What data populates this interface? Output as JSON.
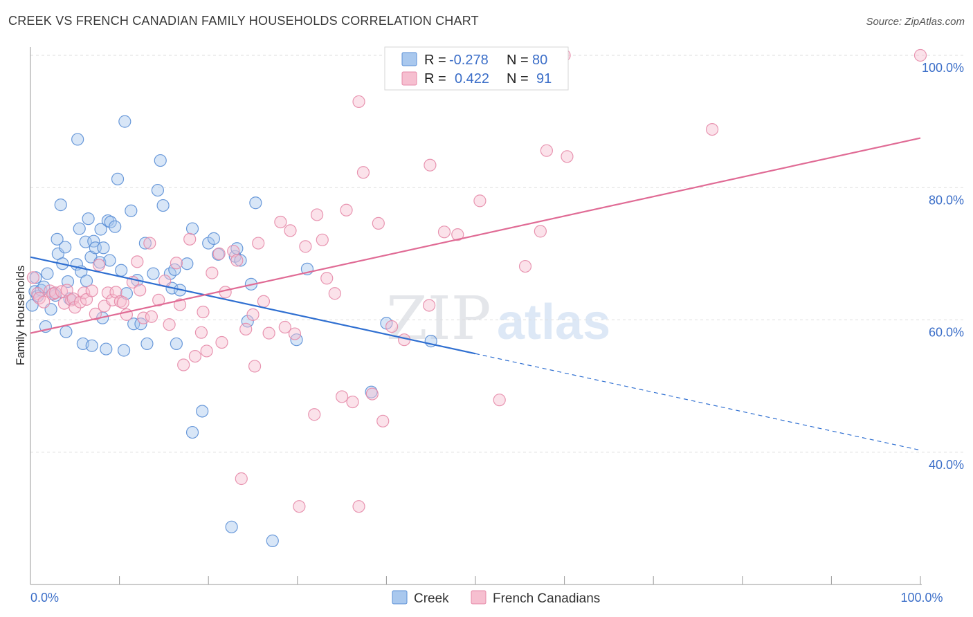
{
  "header": {
    "title": "CREEK VS FRENCH CANADIAN FAMILY HOUSEHOLDS CORRELATION CHART",
    "source": "Source: ZipAtlas.com"
  },
  "watermark": {
    "zip": "ZIP",
    "atlas": "atlas"
  },
  "legend": {
    "rows": [
      {
        "r_label": "R =",
        "r_value": "-0.278",
        "n_label": "N =",
        "n_value": "80"
      },
      {
        "r_label": "R =",
        "r_value": "0.422",
        "n_label": "N =",
        "n_value": "91"
      }
    ]
  },
  "bottom_legend": {
    "creek": "Creek",
    "french": "French Canadians"
  },
  "colors": {
    "creek_fill": "#a9c8ee",
    "creek_stroke": "#5b8fd6",
    "creek_line": "#2f6fd1",
    "french_fill": "#f6bfd0",
    "french_stroke": "#e68aa8",
    "french_line": "#e06b95",
    "tick_label": "#3b6ec8",
    "grid": "#dddddd"
  },
  "chart_data": {
    "type": "scatter",
    "xlabel": "",
    "ylabel": "Family Households",
    "xlim": [
      0,
      100
    ],
    "ylim": [
      20,
      100
    ],
    "x_tick_labels": [
      "0.0%",
      "100.0%"
    ],
    "y_ticks": [
      40,
      60,
      80,
      100
    ],
    "y_tick_labels": [
      "40.0%",
      "60.0%",
      "80.0%",
      "100.0%"
    ],
    "grid": true,
    "legend_position": "top-center",
    "series": [
      {
        "name": "Creek",
        "r": -0.278,
        "n": 80,
        "trend": {
          "x0": 0,
          "y0": 69.5,
          "x1": 50,
          "y1": 54.9,
          "dashed_to_x": 100,
          "dashed_to_y": 40.3
        },
        "points": [
          [
            0.2,
            62.2
          ],
          [
            0.5,
            64.3
          ],
          [
            0.6,
            66.4
          ],
          [
            0.8,
            63.6
          ],
          [
            1.2,
            64.5
          ],
          [
            1.5,
            65.0
          ],
          [
            1.7,
            59.0
          ],
          [
            1.9,
            67.0
          ],
          [
            2.3,
            61.6
          ],
          [
            2.6,
            64.0
          ],
          [
            2.8,
            63.7
          ],
          [
            3.0,
            72.2
          ],
          [
            3.1,
            70.0
          ],
          [
            3.4,
            77.4
          ],
          [
            3.6,
            68.5
          ],
          [
            3.9,
            71.0
          ],
          [
            4.0,
            58.2
          ],
          [
            4.2,
            65.8
          ],
          [
            4.4,
            63.2
          ],
          [
            5.2,
            68.4
          ],
          [
            5.3,
            87.3
          ],
          [
            5.5,
            73.8
          ],
          [
            5.7,
            67.3
          ],
          [
            5.9,
            56.4
          ],
          [
            6.2,
            71.8
          ],
          [
            6.3,
            65.9
          ],
          [
            6.5,
            75.3
          ],
          [
            6.8,
            69.5
          ],
          [
            6.9,
            56.1
          ],
          [
            7.1,
            71.9
          ],
          [
            7.3,
            70.9
          ],
          [
            7.8,
            68.7
          ],
          [
            7.9,
            73.7
          ],
          [
            8.1,
            60.3
          ],
          [
            8.2,
            70.9
          ],
          [
            8.5,
            55.6
          ],
          [
            8.7,
            75.0
          ],
          [
            8.9,
            69.0
          ],
          [
            9.0,
            74.8
          ],
          [
            9.5,
            74.1
          ],
          [
            9.8,
            81.3
          ],
          [
            10.2,
            67.5
          ],
          [
            10.5,
            55.4
          ],
          [
            10.6,
            90.0
          ],
          [
            10.8,
            64.0
          ],
          [
            11.3,
            76.5
          ],
          [
            11.6,
            59.4
          ],
          [
            12.4,
            59.4
          ],
          [
            12.9,
            71.6
          ],
          [
            13.1,
            56.4
          ],
          [
            13.8,
            67.0
          ],
          [
            14.3,
            79.6
          ],
          [
            14.6,
            84.1
          ],
          [
            14.9,
            77.3
          ],
          [
            15.7,
            67.0
          ],
          [
            15.9,
            64.8
          ],
          [
            16.2,
            67.6
          ],
          [
            16.4,
            56.4
          ],
          [
            17.6,
            68.5
          ],
          [
            18.2,
            73.8
          ],
          [
            18.2,
            43.0
          ],
          [
            19.3,
            46.2
          ],
          [
            20.0,
            71.6
          ],
          [
            20.6,
            72.3
          ],
          [
            21.1,
            69.9
          ],
          [
            22.6,
            28.7
          ],
          [
            23.0,
            69.6
          ],
          [
            23.2,
            70.8
          ],
          [
            23.6,
            69.0
          ],
          [
            24.4,
            59.8
          ],
          [
            24.8,
            65.4
          ],
          [
            25.3,
            77.7
          ],
          [
            27.2,
            26.6
          ],
          [
            29.9,
            57.0
          ],
          [
            31.1,
            67.7
          ],
          [
            38.3,
            49.1
          ],
          [
            40.0,
            59.5
          ],
          [
            45.0,
            56.8
          ],
          [
            16.8,
            64.5
          ],
          [
            12.0,
            66.0
          ]
        ]
      },
      {
        "name": "French Canadians",
        "r": 0.422,
        "n": 91,
        "trend": {
          "x0": 0,
          "y0": 58.0,
          "x1": 100,
          "y1": 87.5
        },
        "points": [
          [
            0.3,
            66.4
          ],
          [
            0.8,
            64.0
          ],
          [
            1.0,
            63.3
          ],
          [
            1.5,
            62.7
          ],
          [
            2.2,
            64.4
          ],
          [
            2.5,
            63.9
          ],
          [
            2.8,
            64.1
          ],
          [
            3.5,
            64.3
          ],
          [
            3.8,
            62.5
          ],
          [
            4.1,
            64.5
          ],
          [
            4.6,
            63.0
          ],
          [
            4.8,
            63.2
          ],
          [
            5.0,
            61.9
          ],
          [
            5.6,
            62.7
          ],
          [
            6.0,
            64.1
          ],
          [
            6.3,
            63.1
          ],
          [
            6.9,
            64.4
          ],
          [
            7.3,
            60.9
          ],
          [
            7.7,
            68.3
          ],
          [
            8.3,
            62.1
          ],
          [
            8.7,
            64.1
          ],
          [
            9.2,
            63.0
          ],
          [
            9.6,
            64.2
          ],
          [
            10.1,
            62.8
          ],
          [
            10.4,
            62.6
          ],
          [
            10.8,
            60.8
          ],
          [
            11.5,
            65.7
          ],
          [
            12.0,
            68.8
          ],
          [
            12.3,
            64.5
          ],
          [
            12.7,
            60.3
          ],
          [
            13.4,
            71.6
          ],
          [
            13.6,
            60.5
          ],
          [
            14.4,
            63.0
          ],
          [
            15.1,
            65.9
          ],
          [
            15.6,
            59.3
          ],
          [
            16.4,
            68.6
          ],
          [
            16.8,
            62.3
          ],
          [
            17.2,
            53.2
          ],
          [
            17.9,
            72.2
          ],
          [
            18.5,
            54.5
          ],
          [
            19.2,
            58.1
          ],
          [
            19.4,
            61.2
          ],
          [
            19.8,
            55.3
          ],
          [
            20.4,
            67.1
          ],
          [
            21.2,
            70.0
          ],
          [
            21.5,
            56.6
          ],
          [
            21.9,
            64.2
          ],
          [
            22.8,
            70.4
          ],
          [
            23.2,
            69.0
          ],
          [
            23.7,
            36.0
          ],
          [
            24.2,
            58.6
          ],
          [
            25.0,
            60.8
          ],
          [
            25.2,
            53.0
          ],
          [
            25.6,
            71.6
          ],
          [
            26.2,
            62.8
          ],
          [
            26.8,
            58.0
          ],
          [
            28.1,
            74.8
          ],
          [
            28.6,
            58.9
          ],
          [
            29.2,
            73.5
          ],
          [
            29.7,
            57.9
          ],
          [
            30.2,
            31.8
          ],
          [
            30.9,
            71.1
          ],
          [
            31.9,
            45.7
          ],
          [
            32.2,
            75.9
          ],
          [
            32.8,
            72.1
          ],
          [
            33.3,
            66.3
          ],
          [
            34.2,
            64.0
          ],
          [
            35.0,
            48.4
          ],
          [
            35.5,
            76.6
          ],
          [
            36.2,
            47.6
          ],
          [
            36.9,
            31.8
          ],
          [
            36.9,
            93.0
          ],
          [
            37.4,
            82.3
          ],
          [
            38.4,
            48.8
          ],
          [
            39.1,
            74.6
          ],
          [
            39.6,
            44.7
          ],
          [
            40.6,
            59.0
          ],
          [
            42.0,
            57.0
          ],
          [
            44.8,
            62.2
          ],
          [
            44.9,
            83.4
          ],
          [
            46.5,
            73.3
          ],
          [
            47.6,
            100.0
          ],
          [
            48.0,
            72.9
          ],
          [
            50.5,
            78.0
          ],
          [
            52.7,
            47.9
          ],
          [
            55.6,
            68.1
          ],
          [
            57.3,
            73.4
          ],
          [
            58.0,
            85.6
          ],
          [
            60.0,
            100.0
          ],
          [
            60.3,
            84.7
          ],
          [
            76.6,
            88.8
          ],
          [
            100.0,
            100.0
          ]
        ]
      }
    ]
  }
}
